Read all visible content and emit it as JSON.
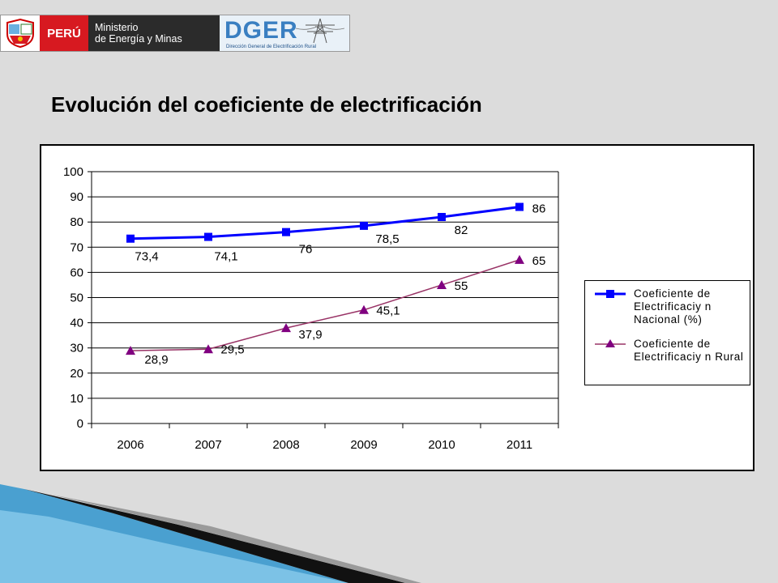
{
  "header": {
    "country": "PERÚ",
    "ministry_line1": "Ministerio",
    "ministry_line2": "de Energía y Minas",
    "dger": "DGER",
    "dger_sub": "Dirección General de Electrificación Rural",
    "icons": [
      "coat-of-arms-icon",
      "power-tower-icon"
    ]
  },
  "title": "Evolución del coeficiente de electrificación",
  "chart_data": {
    "type": "line",
    "categories": [
      "2006",
      "2007",
      "2008",
      "2009",
      "2010",
      "2011"
    ],
    "ylim": [
      0,
      100
    ],
    "yticks": [
      "0",
      "10",
      "20",
      "30",
      "40",
      "50",
      "60",
      "70",
      "80",
      "90",
      "100"
    ],
    "grid": true,
    "legend_position": "right",
    "series": [
      {
        "name": "Coeficiente de Electrificaciy n Nacional (%)",
        "values": [
          73.4,
          74.1,
          76,
          78.5,
          82,
          86
        ],
        "labels": [
          "73,4",
          "74,1",
          "76",
          "78,5",
          "82",
          "86"
        ],
        "color": "#0000ff",
        "marker": "square"
      },
      {
        "name": "Coeficiente de Electrificaciy n Rural",
        "values": [
          28.9,
          29.5,
          37.9,
          45.1,
          55,
          65
        ],
        "labels": [
          "28,9",
          "29,5",
          "37,9",
          "45,1",
          "55",
          "65"
        ],
        "color": "#993366",
        "marker_color": "#800080",
        "marker": "triangle"
      }
    ]
  }
}
